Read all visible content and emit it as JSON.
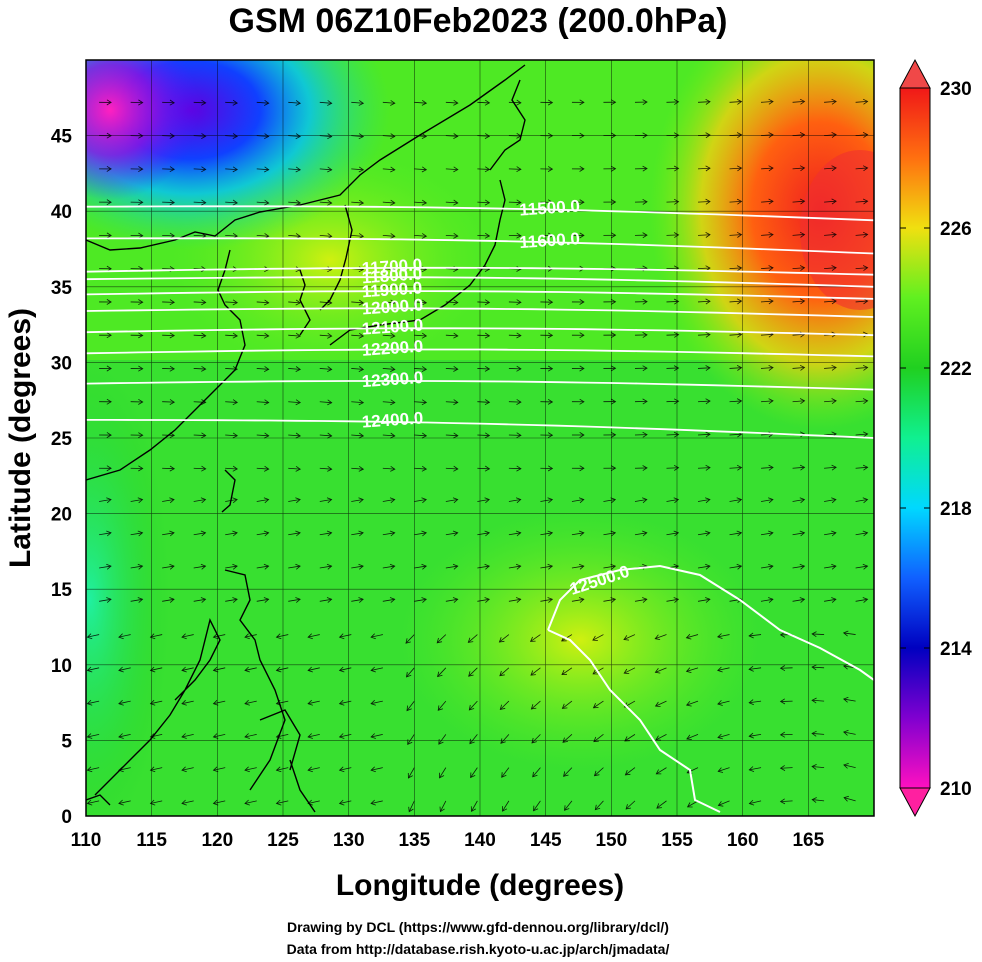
{
  "title": "GSM 06Z10Feb2023 (200.0hPa)",
  "x_axis": {
    "label": "Longitude (degrees)",
    "range": [
      110,
      170
    ],
    "ticks": [
      "110",
      "115",
      "120",
      "125",
      "130",
      "135",
      "140",
      "145",
      "150",
      "155",
      "160",
      "165"
    ]
  },
  "y_axis": {
    "label": "Latitude  (degrees)",
    "range": [
      0,
      50
    ],
    "ticks": [
      "0",
      "5",
      "10",
      "15",
      "20",
      "25",
      "30",
      "35",
      "40",
      "45"
    ]
  },
  "colorbar": {
    "range": [
      210,
      230
    ],
    "ticks": [
      "210",
      "214",
      "218",
      "222",
      "226",
      "230"
    ],
    "colors": [
      "#ff10c0",
      "#8000d0",
      "#0000c0",
      "#1060ff",
      "#00d8ff",
      "#10f090",
      "#20d020",
      "#60f020",
      "#f0e010",
      "#ff7010",
      "#f01818"
    ]
  },
  "contours": [
    {
      "label": "11500.0",
      "lat_west": 40.3,
      "lat_east": 39.4
    },
    {
      "label": "11600.0",
      "lat_west": 38.2,
      "lat_east": 37.2
    },
    {
      "label": "11700.0",
      "lat_west": 36.0,
      "lat_east": 35.8
    },
    {
      "label": "11800.0",
      "lat_west": 35.5,
      "lat_east": 35.0
    },
    {
      "label": "11900.0",
      "lat_west": 34.5,
      "lat_east": 34.2
    },
    {
      "label": "12000.0",
      "lat_west": 33.4,
      "lat_east": 33.0
    },
    {
      "label": "12100.0",
      "lat_west": 32.0,
      "lat_east": 31.8
    },
    {
      "label": "12200.0",
      "lat_west": 30.6,
      "lat_east": 30.4
    },
    {
      "label": "12300.0",
      "lat_west": 28.6,
      "lat_east": 28.2
    },
    {
      "label": "12400.0",
      "lat_west": 26.2,
      "lat_east": 25.0
    },
    {
      "label": "12500.0",
      "lat_west": null,
      "lat_east": null
    }
  ],
  "credits": [
    "Drawing by DCL (https://www.gfd-dennou.org/library/dcl/)",
    "Data from http://database.rish.kyoto-u.ac.jp/arch/jmadata/"
  ]
}
